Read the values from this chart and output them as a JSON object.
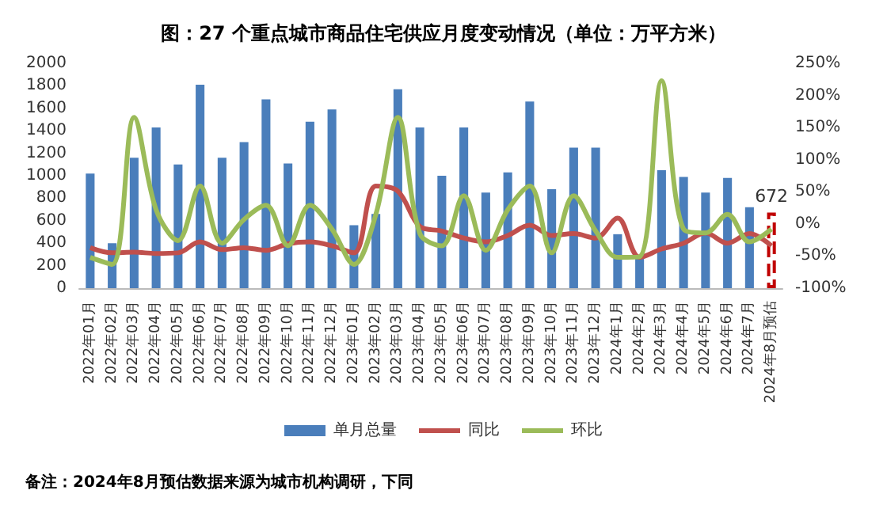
{
  "chart_data": {
    "type": "bar",
    "title": "图：27 个重点城市商品住宅供应月度变动情况（单位：万平方米）",
    "annotations": [
      "备注：2024年8月预估数据来源为城市机构调研，下同"
    ],
    "categories": [
      "2022年01月",
      "2022年02月",
      "2022年03月",
      "2022年04月",
      "2022年05月",
      "2022年06月",
      "2022年07月",
      "2022年08月",
      "2022年09月",
      "2022年10月",
      "2022年11月",
      "2022年12月",
      "2023年01月",
      "2023年02月",
      "2023年03月",
      "2023年04月",
      "2023年05月",
      "2023年06月",
      "2023年07月",
      "2023年08月",
      "2023年09月",
      "2023年10月",
      "2023年11月",
      "2023年12月",
      "2024年1月",
      "2024年2月",
      "2024年3月",
      "2024年4月",
      "2024年5月",
      "2024年6月",
      "2024年7月",
      "2024年8月预估"
    ],
    "series": [
      {
        "name": "单月总量",
        "color": "#4a7ebb",
        "colors": [
          "#4a7ebb",
          "#4a7ebb",
          "#4a7ebb",
          "#4a7ebb",
          "#4a7ebb",
          "#4a7ebb",
          "#4a7ebb",
          "#4a7ebb",
          "#4a7ebb",
          "#4a7ebb",
          "#4a7ebb",
          "#4a7ebb",
          "#4a7ebb",
          "#4a7ebb",
          "#4a7ebb",
          "#4a7ebb",
          "#4a7ebb",
          "#4a7ebb",
          "#4a7ebb",
          "#4a7ebb",
          "#4a7ebb",
          "#4a7ebb",
          "#4a7ebb",
          "#4a7ebb",
          "#4a7ebb",
          "#4a7ebb",
          "#4a7ebb",
          "#4a7ebb",
          "#4a7ebb",
          "#4a7ebb",
          "#4a7ebb",
          "#c00000"
        ],
        "values": [
          1020,
          400,
          1160,
          1430,
          1100,
          1810,
          1160,
          1300,
          1680,
          1110,
          1480,
          1590,
          560,
          660,
          1770,
          1430,
          1000,
          1430,
          850,
          1030,
          1660,
          880,
          1250,
          1250,
          480,
          280,
          1050,
          990,
          850,
          980,
          720,
          672
        ],
        "value_labels": [
          null,
          null,
          null,
          null,
          null,
          null,
          null,
          null,
          null,
          null,
          null,
          null,
          null,
          null,
          null,
          null,
          null,
          null,
          null,
          null,
          null,
          null,
          null,
          null,
          null,
          null,
          null,
          null,
          null,
          null,
          null,
          "672"
        ]
      },
      {
        "name": "同比",
        "type": "line",
        "axis": "y2",
        "color": "#c0504d",
        "values": [
          -37,
          -45,
          -44,
          -46,
          -45,
          -28,
          -40,
          -37,
          -41,
          -31,
          -28,
          -34,
          -45,
          59,
          51,
          -4,
          -11,
          -22,
          -28,
          -18,
          -2,
          -18,
          -15,
          -22,
          9,
          -52,
          -39,
          -30,
          -14,
          -30,
          -15,
          -34
        ]
      },
      {
        "name": "环比",
        "type": "line",
        "axis": "y2",
        "color": "#9bbb59",
        "values": [
          -52,
          -63,
          166,
          22,
          -26,
          59,
          -30,
          7,
          29,
          -34,
          29,
          -8,
          -63,
          15,
          166,
          -15,
          -34,
          44,
          -41,
          22,
          59,
          -45,
          44,
          -11,
          -52,
          -51,
          223,
          -8,
          -14,
          15,
          -28,
          -8
        ]
      }
    ],
    "ylim": [
      0,
      2000
    ],
    "yticks": [
      0,
      200,
      400,
      600,
      800,
      1000,
      1200,
      1400,
      1600,
      1800,
      2000
    ],
    "y2lim": [
      -100,
      250
    ],
    "y2ticks": [
      {
        "value": -100,
        "label": "-100%"
      },
      {
        "value": -50,
        "label": "-50%"
      },
      {
        "value": 0,
        "label": "0%"
      },
      {
        "value": 50,
        "label": "50%"
      },
      {
        "value": 100,
        "label": "100%"
      },
      {
        "value": 150,
        "label": "150%"
      },
      {
        "value": 200,
        "label": "200%"
      },
      {
        "value": 250,
        "label": "250%"
      }
    ],
    "grid": false,
    "legend": "bottom",
    "marker": "none",
    "line_style": "solid"
  }
}
